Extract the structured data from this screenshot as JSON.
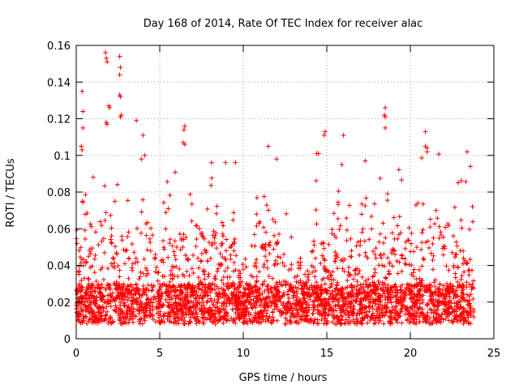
{
  "chart_data": {
    "type": "scatter",
    "title": "Day 168 of 2014, Rate Of TEC Index for receiver alac",
    "xlabel": "GPS time / hours",
    "ylabel": "ROTI / TECUs",
    "xlim": [
      0,
      25
    ],
    "ylim": [
      0,
      0.16
    ],
    "xticks": [
      0,
      5,
      10,
      15,
      20,
      25
    ],
    "xtick_labels": [
      "0",
      "5",
      "10",
      "15",
      "20",
      "25"
    ],
    "yticks": [
      0,
      0.02,
      0.04,
      0.06,
      0.08,
      0.1,
      0.12,
      0.14,
      0.16
    ],
    "ytick_labels": [
      "0",
      "0.02",
      "0.04",
      "0.06",
      "0.08",
      "0.1",
      "0.12",
      "0.14",
      "0.16"
    ],
    "grid": true,
    "marker": "+",
    "marker_color": "#ff0000",
    "series": [
      {
        "name": "ROTI",
        "x_range": [
          0,
          23.8
        ],
        "typical_range": [
          0.008,
          0.03
        ],
        "peak_points": [
          [
            1.75,
            0.156
          ],
          [
            1.8,
            0.153
          ],
          [
            1.85,
            0.151
          ],
          [
            2.6,
            0.154
          ],
          [
            2.65,
            0.148
          ],
          [
            2.6,
            0.144
          ],
          [
            0.35,
            0.135
          ],
          [
            0.4,
            0.124
          ],
          [
            2.6,
            0.133
          ],
          [
            2.65,
            0.132
          ],
          [
            1.95,
            0.127
          ],
          [
            2.0,
            0.126
          ],
          [
            18.5,
            0.126
          ],
          [
            18.45,
            0.122
          ],
          [
            18.5,
            0.121
          ],
          [
            2.7,
            0.122
          ],
          [
            2.65,
            0.121
          ],
          [
            3.6,
            0.119
          ],
          [
            1.8,
            0.118
          ],
          [
            1.85,
            0.117
          ],
          [
            0.4,
            0.115
          ],
          [
            18.5,
            0.115
          ],
          [
            6.5,
            0.116
          ],
          [
            6.45,
            0.114
          ],
          [
            20.9,
            0.113
          ],
          [
            14.9,
            0.113
          ],
          [
            14.85,
            0.111
          ],
          [
            16.0,
            0.111
          ],
          [
            4.0,
            0.111
          ],
          [
            0.3,
            0.105
          ],
          [
            0.35,
            0.103
          ],
          [
            11.5,
            0.105
          ],
          [
            14.5,
            0.101
          ],
          [
            14.4,
            0.101
          ],
          [
            23.4,
            0.102
          ],
          [
            21.0,
            0.102
          ],
          [
            23.6,
            0.094
          ],
          [
            6.4,
            0.107
          ],
          [
            6.5,
            0.106
          ],
          [
            4.1,
            0.1
          ],
          [
            3.9,
            0.098
          ],
          [
            8.1,
            0.096
          ],
          [
            20.9,
            0.105
          ],
          [
            21.0,
            0.104
          ],
          [
            12.0,
            0.098
          ],
          [
            15.9,
            0.095
          ],
          [
            17.3,
            0.097
          ]
        ],
        "seed": 168
      }
    ]
  }
}
